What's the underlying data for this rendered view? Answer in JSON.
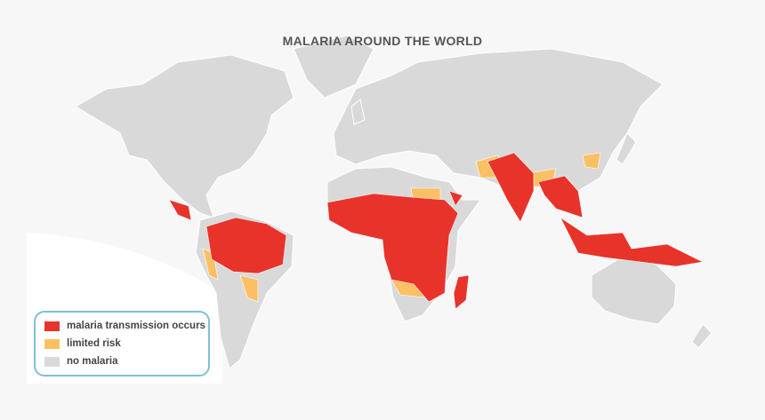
{
  "title": "MALARIA AROUND THE WORLD",
  "colors": {
    "transmission": "#e8332a",
    "limited": "#fbc063",
    "none": "#d9d9d9",
    "ocean": "#f7f7f7",
    "legend_border": "#7fbfd9"
  },
  "legend": [
    {
      "label": "malaria transmission occurs",
      "color": "#e8332a"
    },
    {
      "label": "limited risk",
      "color": "#fbc063"
    },
    {
      "label": "no malaria",
      "color": "#d9d9d9"
    }
  ]
}
